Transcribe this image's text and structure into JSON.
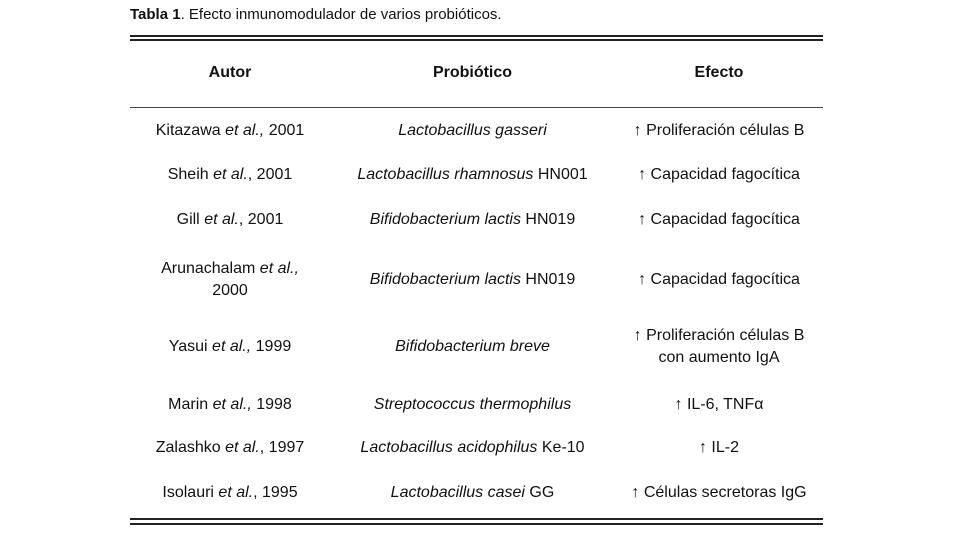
{
  "caption": {
    "label": "Tabla 1",
    "text": ". Efecto inmunomodulador de varios probióticos."
  },
  "table": {
    "headers": [
      "Autor",
      "Probiótico",
      "Efecto"
    ],
    "rows": [
      {
        "author_name": "Kitazawa",
        "author_etal": "et al.,",
        "author_year": "2001",
        "probiotic_italic": "Lactobacillus gasseri",
        "probiotic_strain": "",
        "effect_line1": "↑ Proliferación células B",
        "effect_line2": ""
      },
      {
        "author_name": "Sheih",
        "author_etal": "et al.",
        "author_year": ", 2001",
        "probiotic_italic": "Lactobacillus rhamnosus",
        "probiotic_strain": "HN001",
        "effect_line1": "↑ Capacidad fagocítica",
        "effect_line2": ""
      },
      {
        "author_name": "Gill",
        "author_etal": "et al.",
        "author_year": ", 2001",
        "probiotic_italic": "Bifidobacterium lactis",
        "probiotic_strain": "HN019",
        "effect_line1": "↑ Capacidad fagocítica",
        "effect_line2": ""
      },
      {
        "author_name": "Arunachalam",
        "author_etal": "et al.,",
        "author_year": "2000",
        "probiotic_italic": "Bifidobacterium lactis",
        "probiotic_strain": "HN019",
        "effect_line1": "↑ Capacidad fagocítica",
        "effect_line2": ""
      },
      {
        "author_name": "Yasui",
        "author_etal": "et al.,",
        "author_year": "1999",
        "probiotic_italic": "Bifidobacterium breve",
        "probiotic_strain": "",
        "effect_line1": "↑ Proliferación células B",
        "effect_line2": "con aumento IgA"
      },
      {
        "author_name": "Marin",
        "author_etal": "et al.,",
        "author_year": "1998",
        "probiotic_italic": "Streptococcus thermophilus",
        "probiotic_strain": "",
        "effect_line1": "↑ IL-6, TNFα",
        "effect_line2": ""
      },
      {
        "author_name": "Zalashko",
        "author_etal": "et al.",
        "author_year": ", 1997",
        "probiotic_italic": "Lactobacillus acidophilus",
        "probiotic_strain": "Ke-10",
        "effect_line1": "↑ IL-2",
        "effect_line2": ""
      },
      {
        "author_name": "Isolauri",
        "author_etal": "et al.",
        "author_year": ", 1995",
        "probiotic_italic": "Lactobacillus casei",
        "probiotic_strain": "GG",
        "effect_line1": "↑ Células secretoras IgG",
        "effect_line2": ""
      }
    ]
  }
}
